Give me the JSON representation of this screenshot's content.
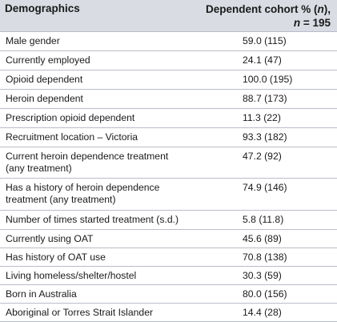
{
  "header": {
    "col1": "Demographics",
    "col2_line1_prefix": "Dependent cohort % (",
    "col2_line1_n": "n",
    "col2_line1_suffix": "),",
    "col2_line2_n": "n",
    "col2_line2_rest": " = 195"
  },
  "rows": [
    {
      "label": "Male gender",
      "value": "59.0 (115)"
    },
    {
      "label": "Currently employed",
      "value": "24.1 (47)"
    },
    {
      "label": "Opioid dependent",
      "value": "100.0 (195)"
    },
    {
      "label": "Heroin dependent",
      "value": "88.7 (173)"
    },
    {
      "label": "Prescription opioid dependent",
      "value": "11.3 (22)"
    },
    {
      "label": "Recruitment location – Victoria",
      "value": "93.3 (182)"
    },
    {
      "label": "Current heroin dependence treatment\n(any treatment)",
      "value": "47.2 (92)"
    },
    {
      "label": "Has a history of heroin dependence\ntreatment (any treatment)",
      "value": "74.9 (146)"
    },
    {
      "label": "Number of times started treatment (s.d.)",
      "value": "5.8 (11.8)"
    },
    {
      "label": "Currently using OAT",
      "value": "45.6 (89)"
    },
    {
      "label": "Has history of OAT use",
      "value": "70.8 (138)"
    },
    {
      "label": "Living homeless/shelter/hostel",
      "value": "30.3 (59)"
    },
    {
      "label": "Born in Australia",
      "value": "80.0 (156)"
    },
    {
      "label": "Aboriginal or Torres Strait Islander",
      "value": "14.4 (28)"
    }
  ]
}
